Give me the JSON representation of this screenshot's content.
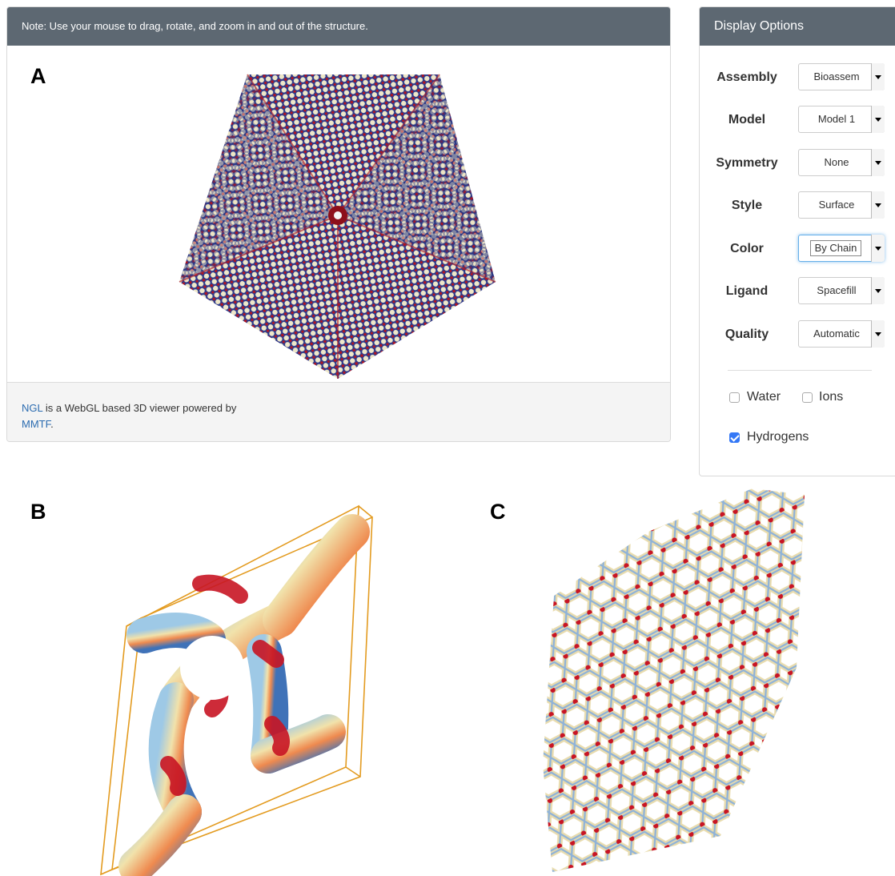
{
  "viewer": {
    "note": "Note: Use your mouse to drag, rotate, and zoom in and out of the structure.",
    "footer": {
      "ngl_link": "NGL",
      "text": " is a WebGL based 3D viewer powered by",
      "mmtf_link": "MMTF",
      "period": "."
    }
  },
  "figure_labels": {
    "a": "A",
    "b": "B",
    "c": "C"
  },
  "options": {
    "title": "Display Options",
    "rows": [
      {
        "label": "Assembly",
        "value": "Bioassem"
      },
      {
        "label": "Model",
        "value": "Model 1"
      },
      {
        "label": "Symmetry",
        "value": "None"
      },
      {
        "label": "Style",
        "value": "Surface"
      },
      {
        "label": "Color",
        "value": "By Chain"
      },
      {
        "label": "Ligand",
        "value": "Spacefill"
      },
      {
        "label": "Quality",
        "value": "Automatic"
      }
    ],
    "checkboxes": [
      {
        "label": "Water",
        "checked": false
      },
      {
        "label": "Ions",
        "checked": false
      },
      {
        "label": "Hydrogens",
        "checked": true
      }
    ]
  },
  "colors": {
    "panel_heading": "#5d6872",
    "link": "#2a6bb0",
    "capsid_blue": "#2c3a8c",
    "capsid_cream": "#efe7c8",
    "capsid_red": "#b01622",
    "unit_cell": "#e39b20"
  }
}
